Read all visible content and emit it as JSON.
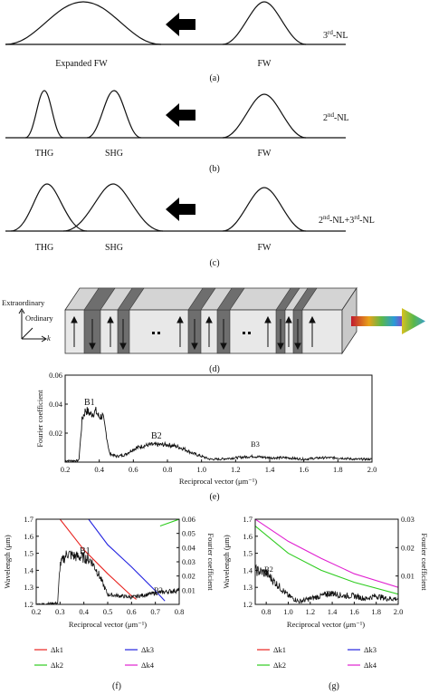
{
  "panel_a": {
    "nl_label": "3rd-NL",
    "nl_base": "3",
    "nl_sup": "rd",
    "nl_tail": "-NL",
    "peak_left": "Expanded FW",
    "peak_right": "FW",
    "caption": "(a)"
  },
  "panel_b": {
    "nl_base": "2",
    "nl_sup": "nd",
    "nl_tail": "-NL",
    "peak_1": "THG",
    "peak_2": "SHG",
    "peak_3": "FW",
    "caption": "(b)"
  },
  "panel_c": {
    "nl_p1_base": "2",
    "nl_p1_sup": "nd",
    "nl_p1_tail": "-NL+3",
    "nl_p2_sup": "rd",
    "nl_p2_tail": "-NL",
    "peak_1": "THG",
    "peak_2": "SHG",
    "peak_3": "FW",
    "caption": "(c)"
  },
  "panel_d": {
    "axis_extraordinary": "Extraordinary",
    "axis_ordinary": "Ordinary",
    "axis_k": "k",
    "caption": "(d)",
    "colors": {
      "poled_domain": "#6e6e6e",
      "crystal_face": "#e8e8e8",
      "crystal_top": "#d4d4d4"
    }
  },
  "panel_e": {
    "ylabel": "Fourier coefficient",
    "xlabel": "Reciprocal vector (μm⁻¹)",
    "caption": "(e)",
    "annotations": [
      "B1",
      "B2",
      "B3"
    ],
    "yticks": [
      "0.06",
      "0.04",
      "0.02"
    ],
    "xticks": [
      "0.2",
      "0.4",
      "0.6",
      "0.8",
      "1.0",
      "1.2",
      "1.4",
      "1.6",
      "1.8",
      "2.0"
    ]
  },
  "panel_f": {
    "ylabel_left": "Wavelength (μm)",
    "ylabel_right": "Fourier coefficient",
    "xlabel": "Reciprocal vector (μm⁻¹)",
    "caption": "(f)",
    "annotations": [
      "B1",
      "B2"
    ],
    "yticks_left": [
      "1.7",
      "1.6",
      "1.5",
      "1.4",
      "1.3",
      "1.2"
    ],
    "yticks_right": [
      "0.06",
      "0.05",
      "0.04",
      "0.03",
      "0.02",
      "0.01"
    ],
    "xticks": [
      "0.2",
      "0.3",
      "0.4",
      "0.5",
      "0.6",
      "0.7",
      "0.8"
    ],
    "legend": [
      "Δk1",
      "Δk3",
      "Δk2",
      "Δk4"
    ]
  },
  "panel_g": {
    "ylabel_left": "Wavelength (μm)",
    "ylabel_right": "Fourier coefficient",
    "xlabel": "Reciprocal vector (μm⁻¹)",
    "caption": "(g)",
    "annotations": [
      "B2",
      "B3"
    ],
    "yticks_left": [
      "1.7",
      "1.6",
      "1.5",
      "1.4",
      "1.3",
      "1.2"
    ],
    "yticks_right": [
      "0.03",
      "0.02",
      "0.01"
    ],
    "xticks": [
      "0.8",
      "1.0",
      "1.2",
      "1.4",
      "1.6",
      "1.8",
      "2.0"
    ],
    "legend": [
      "Δk1",
      "Δk3",
      "Δk2",
      "Δk4"
    ]
  },
  "legend_colors": {
    "dk1": "#e8231f",
    "dk2": "#2ecc1f",
    "dk3": "#2323e0",
    "dk4": "#e020d0"
  },
  "chart_data": [
    {
      "type": "line",
      "panel": "e",
      "xlabel": "Reciprocal vector (μm⁻¹)",
      "ylabel": "Fourier coefficient",
      "xlim": [
        0.2,
        2.0
      ],
      "ylim": [
        0,
        0.06
      ],
      "series": [
        {
          "x": [
            0.2,
            0.28,
            0.3,
            0.32,
            0.35,
            0.38,
            0.4,
            0.42,
            0.44,
            0.46,
            0.5,
            0.55,
            0.6,
            0.65,
            0.7,
            0.75,
            0.8,
            0.85,
            0.9,
            0.95,
            1.0,
            1.05,
            1.1,
            1.2,
            1.3,
            1.4,
            1.5,
            1.6,
            1.7,
            1.8,
            1.9,
            2.0
          ],
          "y": [
            0.001,
            0.001,
            0.03,
            0.036,
            0.033,
            0.035,
            0.031,
            0.032,
            0.02,
            0.006,
            0.004,
            0.005,
            0.009,
            0.011,
            0.012,
            0.012,
            0.012,
            0.011,
            0.009,
            0.006,
            0.004,
            0.002,
            0.002,
            0.003,
            0.004,
            0.003,
            0.003,
            0.002,
            0.003,
            0.003,
            0.002,
            0.002
          ]
        }
      ]
    },
    {
      "type": "line",
      "panel": "f",
      "xlabel": "Reciprocal vector (μm⁻¹)",
      "ylabel": "Wavelength (μm)",
      "xlim": [
        0.2,
        0.8
      ],
      "ylim": [
        1.2,
        1.7
      ],
      "series": [
        {
          "name": "Δk1",
          "x": [
            0.3,
            0.4,
            0.5,
            0.6,
            0.62
          ],
          "y": [
            1.7,
            1.52,
            1.38,
            1.25,
            1.23
          ]
        },
        {
          "name": "Δk3",
          "x": [
            0.42,
            0.5,
            0.6,
            0.7,
            0.74
          ],
          "y": [
            1.7,
            1.55,
            1.42,
            1.28,
            1.22
          ]
        },
        {
          "name": "Δk2",
          "x": [
            0.72,
            0.8
          ],
          "y": [
            1.66,
            1.7
          ]
        },
        {
          "name": "Fourier coefficient",
          "x": [
            0.2,
            0.29,
            0.3,
            0.33,
            0.36,
            0.4,
            0.43,
            0.46,
            0.5,
            0.6,
            0.7,
            0.8
          ],
          "y": [
            0.0,
            0.001,
            0.028,
            0.036,
            0.034,
            0.033,
            0.031,
            0.022,
            0.007,
            0.005,
            0.008,
            0.01
          ]
        }
      ]
    },
    {
      "type": "line",
      "panel": "g",
      "xlabel": "Reciprocal vector (μm⁻¹)",
      "ylabel": "Wavelength (μm)",
      "xlim": [
        0.7,
        2.0
      ],
      "ylim": [
        1.2,
        1.7
      ],
      "series": [
        {
          "name": "Δk1",
          "x": [
            0.7,
            2.0
          ],
          "y": [
            1.2,
            1.2
          ]
        },
        {
          "name": "Δk2",
          "x": [
            0.7,
            1.0,
            1.3,
            1.6,
            2.0
          ],
          "y": [
            1.66,
            1.5,
            1.4,
            1.33,
            1.26
          ]
        },
        {
          "name": "Δk4",
          "x": [
            0.7,
            1.0,
            1.3,
            1.6,
            2.0
          ],
          "y": [
            1.7,
            1.57,
            1.47,
            1.38,
            1.3
          ]
        },
        {
          "name": "Fourier coefficient",
          "x": [
            0.7,
            0.8,
            0.9,
            1.0,
            1.1,
            1.2,
            1.3,
            1.4,
            1.5,
            1.6,
            1.7,
            1.8,
            1.9,
            2.0
          ],
          "y": [
            0.012,
            0.011,
            0.007,
            0.003,
            0.001,
            0.002,
            0.003,
            0.004,
            0.003,
            0.003,
            0.002,
            0.003,
            0.002,
            0.002
          ]
        }
      ]
    }
  ]
}
